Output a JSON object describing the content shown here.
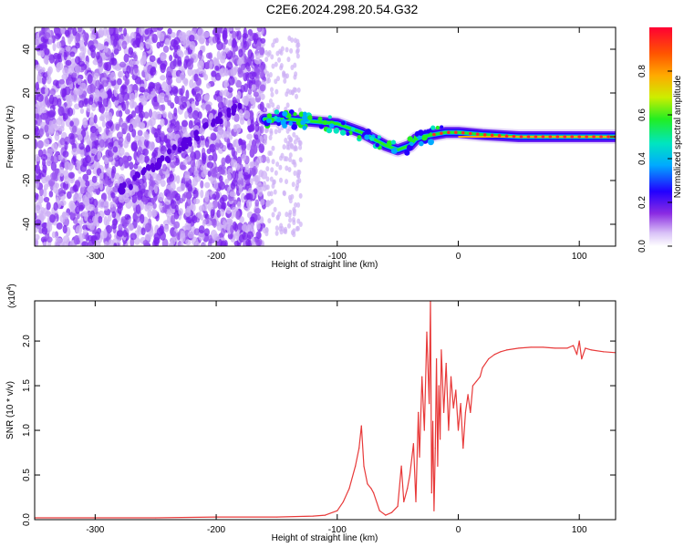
{
  "title": "C2E6.2024.298.20.54.G32",
  "colors": {
    "snr_line": "#e83a3a",
    "noise_dense": "#7a22ee",
    "noise_light": "#cdb0f5",
    "signal_core": "#ff2a2a"
  },
  "chart_data": [
    {
      "type": "heatmap",
      "xlabel": "Height of straight line (km)",
      "ylabel": "Frequency (Hz)",
      "xlim": [
        -350,
        130
      ],
      "ylim": [
        -50,
        50
      ],
      "x_ticks": [
        -300,
        -200,
        -100,
        0,
        100
      ],
      "y_ticks": [
        -40,
        -20,
        0,
        20,
        40
      ],
      "colorbar": {
        "label": "Normalized spectral amplitude",
        "range": [
          0.0,
          1.0
        ],
        "ticks": [
          "0.0",
          "0.2",
          "0.4",
          "0.6",
          "0.8"
        ],
        "tick_values": [
          0.0,
          0.2,
          0.4,
          0.6,
          0.8
        ],
        "colormap": [
          "#ffffff",
          "#d9c2f7",
          "#8a2be2",
          "#2200ff",
          "#00aaff",
          "#00e5c0",
          "#22ee22",
          "#ccee00",
          "#ffaa00",
          "#ff5500",
          "#ff0033"
        ]
      },
      "noise_region_x": [
        -350,
        -160
      ],
      "sparse_noise_region_x": [
        -160,
        -130
      ],
      "diagonal_feature": {
        "x": [
          -280,
          -180
        ],
        "y": [
          -25,
          15
        ]
      },
      "signal_track": {
        "x": [
          -160,
          -140,
          -120,
          -100,
          -90,
          -80,
          -70,
          -60,
          -50,
          -40,
          -35,
          -30,
          -20,
          -10,
          0,
          20,
          50,
          80,
          100,
          130
        ],
        "y": [
          8,
          8,
          7,
          6,
          4,
          2,
          -1,
          -4,
          -6,
          -4,
          -1,
          0,
          1,
          2,
          2,
          1,
          0,
          0,
          0,
          0
        ]
      }
    },
    {
      "type": "line",
      "xlabel": "Height of straight line (km)",
      "ylabel": "SNR (10 * v/v)",
      "multiplier": "(x10",
      "multiplier_exp": "4",
      "xlim": [
        -350,
        130
      ],
      "ylim": [
        0,
        2.45
      ],
      "x_ticks": [
        -300,
        -200,
        -100,
        0,
        100
      ],
      "y_ticks": [
        "0.0",
        "0.5",
        "1.0",
        "1.5",
        "2.0"
      ],
      "y_tick_values": [
        0.0,
        0.5,
        1.0,
        1.5,
        2.0
      ],
      "series": [
        {
          "x": [
            -350,
            -300,
            -250,
            -200,
            -150,
            -120,
            -110,
            -100,
            -95,
            -90,
            -85,
            -82,
            -80,
            -78,
            -75,
            -72,
            -70,
            -65,
            -60,
            -55,
            -50,
            -47,
            -45,
            -42,
            -40,
            -37,
            -35,
            -33,
            -32,
            -30,
            -28,
            -26,
            -24,
            -23,
            -22,
            -21,
            -20,
            -19,
            -18,
            -17,
            -16,
            -15,
            -14,
            -12,
            -10,
            -8,
            -6,
            -4,
            -2,
            0,
            2,
            4,
            6,
            8,
            10,
            12,
            15,
            18,
            20,
            25,
            30,
            35,
            40,
            50,
            60,
            70,
            80,
            90,
            95,
            98,
            100,
            102,
            105,
            110,
            120,
            130
          ],
          "values": [
            0.02,
            0.02,
            0.02,
            0.03,
            0.03,
            0.04,
            0.05,
            0.1,
            0.2,
            0.35,
            0.6,
            0.8,
            1.05,
            0.6,
            0.4,
            0.35,
            0.3,
            0.1,
            0.05,
            0.08,
            0.15,
            0.6,
            0.2,
            0.35,
            0.5,
            0.85,
            0.2,
            1.2,
            0.7,
            1.6,
            1.0,
            2.1,
            1.3,
            2.45,
            0.3,
            1.1,
            0.1,
            0.8,
            1.8,
            0.6,
            1.5,
            0.9,
            1.9,
            1.2,
            1.75,
            1.0,
            1.6,
            1.25,
            1.45,
            1.0,
            1.3,
            0.8,
            1.2,
            1.4,
            1.2,
            1.5,
            1.55,
            1.6,
            1.7,
            1.8,
            1.85,
            1.88,
            1.9,
            1.92,
            1.93,
            1.93,
            1.92,
            1.92,
            1.95,
            1.85,
            2.0,
            1.8,
            1.92,
            1.9,
            1.88,
            1.87
          ]
        }
      ]
    }
  ]
}
